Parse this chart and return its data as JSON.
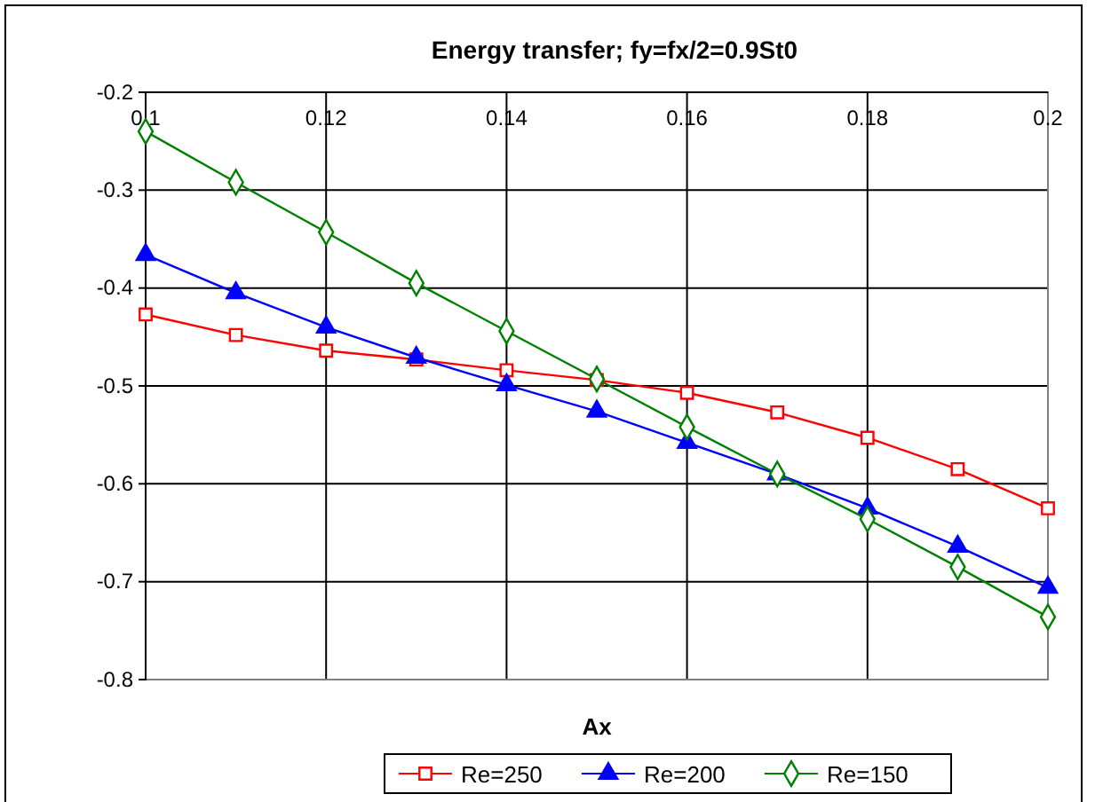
{
  "chart_data": {
    "type": "line",
    "title": "Energy transfer; fy=fx/2=0.9St0",
    "xlabel": "Ax",
    "x": [
      0.1,
      0.11,
      0.12,
      0.13,
      0.14,
      0.15,
      0.16,
      0.17,
      0.18,
      0.19,
      0.2
    ],
    "series": [
      {
        "name": "Re=250",
        "color": "#ff0000",
        "marker": "square",
        "values": [
          -0.427,
          -0.448,
          -0.464,
          -0.473,
          -0.484,
          -0.494,
          -0.507,
          -0.527,
          -0.553,
          -0.585,
          -0.625
        ]
      },
      {
        "name": "Re=200",
        "color": "#0000ff",
        "marker": "triangle",
        "values": [
          -0.366,
          -0.405,
          -0.44,
          -0.471,
          -0.499,
          -0.526,
          -0.558,
          -0.59,
          -0.625,
          -0.664,
          -0.706
        ]
      },
      {
        "name": "Re=150",
        "color": "#008000",
        "marker": "diamond",
        "values": [
          -0.24,
          -0.292,
          -0.343,
          -0.395,
          -0.444,
          -0.493,
          -0.542,
          -0.59,
          -0.636,
          -0.685,
          -0.736
        ]
      }
    ],
    "xlim": [
      0.1,
      0.2
    ],
    "xticks": [
      0.1,
      0.12,
      0.14,
      0.16,
      0.18,
      0.2
    ],
    "ylim": [
      -0.8,
      -0.2
    ],
    "yticks": [
      -0.8,
      -0.7,
      -0.6,
      -0.5,
      -0.4,
      -0.3,
      -0.2
    ],
    "grid": true,
    "legend": "bottom",
    "line_style": "solid"
  }
}
